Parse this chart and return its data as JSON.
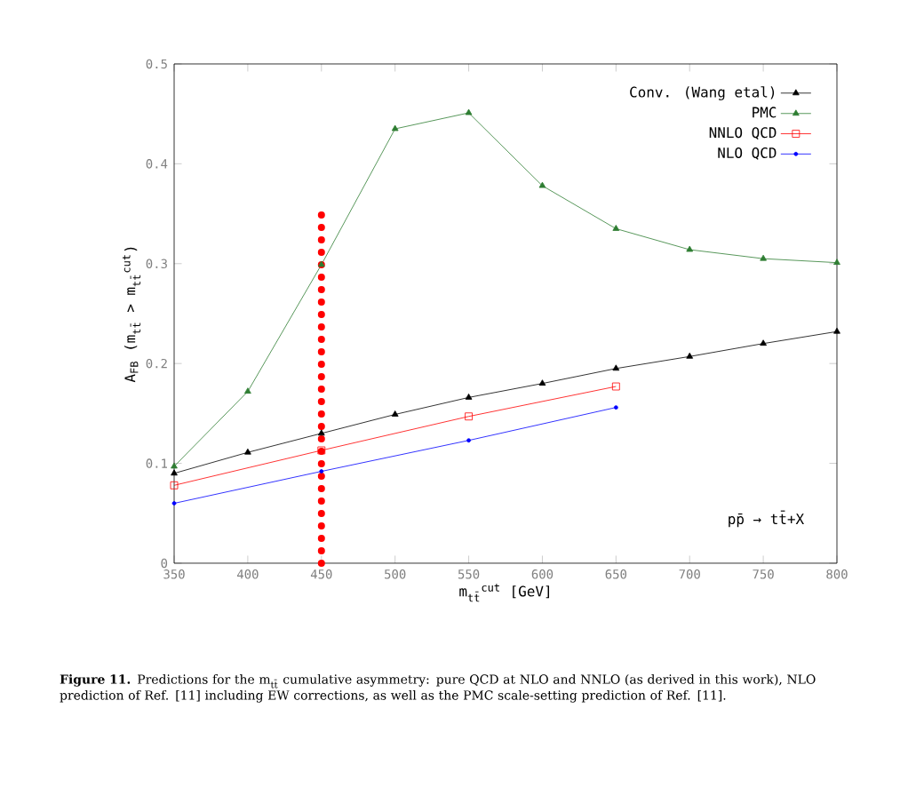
{
  "chart_data": {
    "type": "line",
    "xlabel": "m$_{tt̄}$$^{cut}$ [GeV]",
    "ylabel": "A$_{FB}$ (m$_{tt̄}$ > m$_{tt̄}$$^{cut}$)",
    "x": [
      350,
      400,
      450,
      500,
      550,
      600,
      650,
      700,
      750,
      800
    ],
    "series": [
      {
        "name": "Conv. (Wang etal)",
        "color": "#000000",
        "marker": "triangle",
        "values": [
          0.09,
          0.111,
          0.13,
          0.149,
          0.166,
          0.18,
          0.195,
          0.207,
          0.22,
          0.232
        ]
      },
      {
        "name": "PMC",
        "color": "#2e7d32",
        "marker": "triangle",
        "values": [
          0.097,
          0.172,
          0.299,
          0.435,
          0.451,
          0.378,
          0.335,
          0.314,
          0.305,
          0.301
        ]
      },
      {
        "name": "NNLO QCD",
        "color": "#ff0000",
        "marker": "square",
        "x": [
          350,
          450,
          550,
          650
        ],
        "values": [
          0.078,
          0.113,
          0.147,
          0.177
        ]
      },
      {
        "name": "NLO QCD",
        "color": "#0000ff",
        "marker": "circle",
        "x": [
          350,
          450,
          550,
          650
        ],
        "values": [
          0.06,
          0.092,
          0.123,
          0.156
        ]
      }
    ],
    "xlim": [
      350,
      800
    ],
    "ylim": [
      0,
      0.5
    ],
    "xticks": [
      350,
      400,
      450,
      500,
      550,
      600,
      650,
      700,
      750,
      800
    ],
    "yticks": [
      0,
      0.1,
      0.2,
      0.3,
      0.4,
      0.5
    ],
    "legend": "top right",
    "grid": false,
    "line_style": "solid",
    "ref_lines": [
      {
        "axis": "x",
        "value": 450,
        "color": "#ff0000",
        "line_style": "dotted"
      }
    ],
    "annotations": [
      "pp̄ → tt̄+X",
      "**Figure 11.** Predictions for the m$_{tt̄}$ cumulative asymmetry: pure QCD at NLO and NNLO (as derived in this work), NLO prediction of Ref. [11] including EW corrections, as well as the PMC scale-setting prediction of Ref. [11]."
    ]
  }
}
